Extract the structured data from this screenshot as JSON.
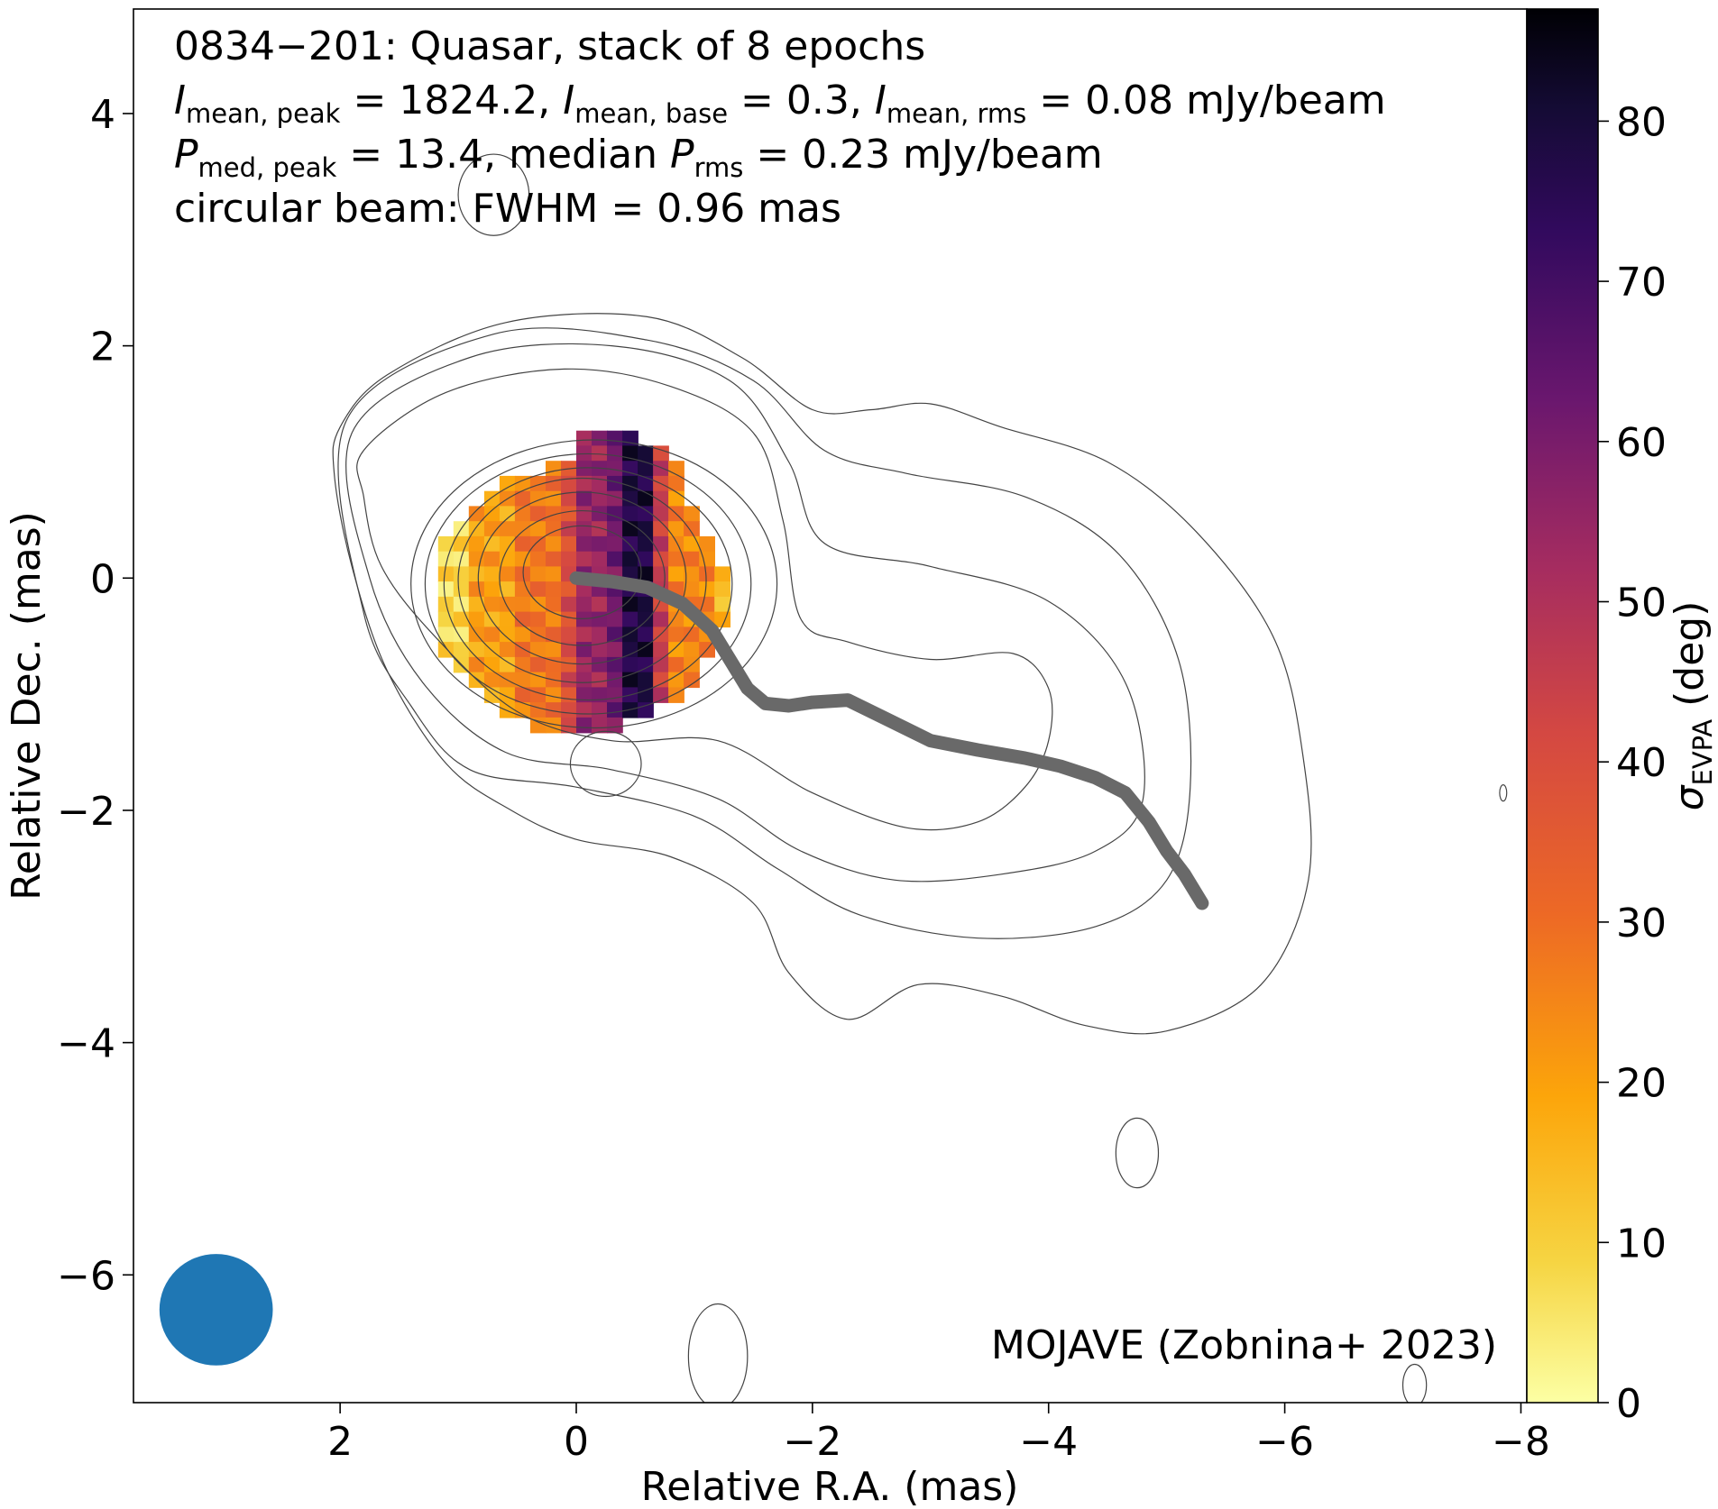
{
  "chart_data": {
    "type": "image",
    "annotation": {
      "line1": "0834−201: Quasar, stack of 8 epochs",
      "line2": [
        {
          "sym": "I",
          "sub": "mean, peak",
          "val": " = 1824.2, "
        },
        {
          "sym": "I",
          "sub": "mean, base",
          "val": " = 0.3, "
        },
        {
          "sym": "I",
          "sub": "mean, rms",
          "val": " = 0.08 mJy/beam"
        }
      ],
      "line3": [
        {
          "sym": "P",
          "sub": "med, peak",
          "val": " = 13.4, median "
        },
        {
          "sym": "P",
          "sub": "rms",
          "val": " = 0.23 mJy/beam"
        }
      ],
      "line4": "circular beam: FWHM = 0.96 mas",
      "credit": "MOJAVE (Zobnina+ 2023)"
    },
    "xlabel": "Relative R.A. (mas)",
    "ylabel": "Relative Dec. (mas)",
    "xlim": [
      3.75,
      -8.05
    ],
    "ylim": [
      -7.1,
      4.9
    ],
    "xticks": [
      2,
      0,
      -2,
      -4,
      -6,
      -8
    ],
    "yticks": [
      4,
      2,
      0,
      -2,
      -4,
      -6
    ],
    "colorbar": {
      "label": "σ",
      "label_sub": "EVPA",
      "label_unit": " (deg)",
      "range": [
        0,
        87
      ],
      "ticks": [
        0,
        10,
        20,
        30,
        40,
        50,
        60,
        70,
        80
      ],
      "colormap": "inferno_r"
    },
    "beam": {
      "x": 3.05,
      "y": -6.3,
      "fwhm": 0.96,
      "color": "#1f77b4"
    },
    "contours": [
      {
        "cx": -0.05,
        "cy": 0.05,
        "rx": 0.5,
        "ry": 0.4
      },
      {
        "cx": -0.05,
        "cy": 0.0,
        "rx": 0.7,
        "ry": 0.58
      },
      {
        "cx": -0.05,
        "cy": 0.0,
        "rx": 0.88,
        "ry": 0.74
      },
      {
        "cx": -0.05,
        "cy": -0.02,
        "rx": 1.05,
        "ry": 0.88
      },
      {
        "cx": -0.1,
        "cy": -0.05,
        "rx": 1.22,
        "ry": 1.0
      },
      {
        "cx": -0.1,
        "cy": -0.05,
        "rx": 1.38,
        "ry": 1.12
      },
      {
        "cx": -0.15,
        "cy": -0.05,
        "rx": 1.55,
        "ry": 1.24
      },
      {
        "cx": -0.25,
        "cy": -1.6,
        "rx": 0.3,
        "ry": 0.28
      }
    ],
    "outer_contours": [
      [
        [
          1.8,
          1.1
        ],
        [
          1.1,
          1.6
        ],
        [
          0.1,
          1.8
        ],
        [
          -0.8,
          1.65
        ],
        [
          -1.5,
          1.25
        ],
        [
          -1.75,
          0.5
        ],
        [
          -1.9,
          -0.35
        ],
        [
          -2.3,
          -0.55
        ],
        [
          -3.0,
          -0.7
        ],
        [
          -3.7,
          -0.65
        ],
        [
          -4.0,
          -0.95
        ],
        [
          -4.0,
          -1.4
        ],
        [
          -3.8,
          -1.8
        ],
        [
          -3.4,
          -2.1
        ],
        [
          -2.8,
          -2.15
        ],
        [
          -2.0,
          -1.85
        ],
        [
          -1.2,
          -1.4
        ],
        [
          -0.3,
          -1.4
        ],
        [
          0.5,
          -1.15
        ],
        [
          1.2,
          -0.5
        ],
        [
          1.65,
          0.1
        ],
        [
          1.8,
          0.7
        ]
      ],
      [
        [
          1.9,
          1.25
        ],
        [
          0.9,
          1.9
        ],
        [
          -0.3,
          2.0
        ],
        [
          -1.3,
          1.7
        ],
        [
          -1.8,
          1.0
        ],
        [
          -2.1,
          0.3
        ],
        [
          -3.0,
          0.1
        ],
        [
          -4.0,
          -0.2
        ],
        [
          -4.65,
          -0.9
        ],
        [
          -4.8,
          -1.9
        ],
        [
          -4.4,
          -2.35
        ],
        [
          -3.6,
          -2.55
        ],
        [
          -2.7,
          -2.6
        ],
        [
          -1.9,
          -2.35
        ],
        [
          -1.2,
          -1.9
        ],
        [
          -0.3,
          -1.65
        ],
        [
          0.6,
          -1.5
        ],
        [
          1.3,
          -0.9
        ],
        [
          1.75,
          0.0
        ]
      ],
      [
        [
          1.95,
          1.35
        ],
        [
          0.7,
          2.1
        ],
        [
          -0.6,
          2.05
        ],
        [
          -1.5,
          1.7
        ],
        [
          -2.1,
          1.1
        ],
        [
          -2.8,
          0.9
        ],
        [
          -3.8,
          0.7
        ],
        [
          -4.6,
          0.2
        ],
        [
          -5.1,
          -0.7
        ],
        [
          -5.2,
          -1.8
        ],
        [
          -5.0,
          -2.6
        ],
        [
          -4.4,
          -3.0
        ],
        [
          -3.4,
          -3.1
        ],
        [
          -2.4,
          -2.9
        ],
        [
          -1.7,
          -2.5
        ],
        [
          -1.0,
          -2.05
        ],
        [
          0.0,
          -1.8
        ],
        [
          0.9,
          -1.65
        ],
        [
          1.4,
          -1.1
        ],
        [
          1.8,
          -0.3
        ]
      ],
      [
        [
          2.0,
          1.3
        ],
        [
          1.6,
          1.75
        ],
        [
          0.6,
          2.2
        ],
        [
          -0.6,
          2.25
        ],
        [
          -1.4,
          1.9
        ],
        [
          -2.0,
          1.45
        ],
        [
          -2.5,
          1.45
        ],
        [
          -3.0,
          1.5
        ],
        [
          -3.6,
          1.3
        ],
        [
          -4.5,
          1.0
        ],
        [
          -5.25,
          0.4
        ],
        [
          -5.9,
          -0.5
        ],
        [
          -6.15,
          -1.5
        ],
        [
          -6.2,
          -2.6
        ],
        [
          -5.8,
          -3.5
        ],
        [
          -5.0,
          -3.9
        ],
        [
          -4.3,
          -3.85
        ],
        [
          -3.6,
          -3.6
        ],
        [
          -2.9,
          -3.5
        ],
        [
          -2.3,
          -3.8
        ],
        [
          -1.8,
          -3.4
        ],
        [
          -1.5,
          -2.8
        ],
        [
          -0.8,
          -2.4
        ],
        [
          0.0,
          -2.25
        ],
        [
          0.55,
          -2.0
        ],
        [
          1.1,
          -1.6
        ],
        [
          1.6,
          -0.8
        ],
        [
          1.9,
          0.1
        ],
        [
          2.05,
          0.9
        ]
      ]
    ],
    "small_contours": [
      {
        "cx": -4.75,
        "cy": -4.95,
        "rx": 0.18,
        "ry": 0.3
      },
      {
        "cx": -1.2,
        "cy": -6.7,
        "rx": 0.25,
        "ry": 0.45
      },
      {
        "cx": -7.1,
        "cy": -6.95,
        "rx": 0.1,
        "ry": 0.18
      },
      {
        "cx": -7.85,
        "cy": -1.85,
        "rx": 0.03,
        "ry": 0.07
      },
      {
        "cx": 0.7,
        "cy": 3.3,
        "rx": 0.3,
        "ry": 0.35
      }
    ],
    "ridge_line": {
      "color": "#696969",
      "x": [
        0.0,
        -0.3,
        -0.6,
        -0.9,
        -1.15,
        -1.3,
        -1.45,
        -1.6,
        -1.8,
        -2.0,
        -2.3,
        -2.6,
        -3.0,
        -3.4,
        -3.8,
        -4.1,
        -4.4,
        -4.65,
        -4.85,
        -5.0,
        -5.15,
        -5.3
      ],
      "y": [
        0.0,
        -0.03,
        -0.08,
        -0.22,
        -0.45,
        -0.7,
        -0.95,
        -1.08,
        -1.1,
        -1.07,
        -1.05,
        -1.2,
        -1.4,
        -1.48,
        -1.55,
        -1.62,
        -1.72,
        -1.85,
        -2.1,
        -2.35,
        -2.55,
        -2.8
      ]
    },
    "evpa_map": {
      "cx": 0.05,
      "cy": -0.1,
      "rx": 1.25,
      "ry": 1.15,
      "cell": 0.13,
      "stripes": [
        {
          "x0": 1.3,
          "x1": 0.95,
          "sigma": 8
        },
        {
          "x0": 0.95,
          "x1": 0.6,
          "sigma": 20
        },
        {
          "x0": 0.6,
          "x1": 0.25,
          "sigma": 28
        },
        {
          "x0": 0.25,
          "x1": 0.0,
          "sigma": 40
        },
        {
          "x0": 0.0,
          "x1": -0.25,
          "sigma": 55
        },
        {
          "x0": -0.25,
          "x1": -0.38,
          "sigma": 62
        },
        {
          "x0": -0.38,
          "x1": -0.55,
          "sigma": 78
        },
        {
          "x0": -0.55,
          "x1": -0.75,
          "sigma": 45
        },
        {
          "x0": -0.75,
          "x1": -1.05,
          "sigma": 25
        },
        {
          "x0": -1.05,
          "x1": -1.4,
          "sigma": 14
        }
      ]
    }
  }
}
